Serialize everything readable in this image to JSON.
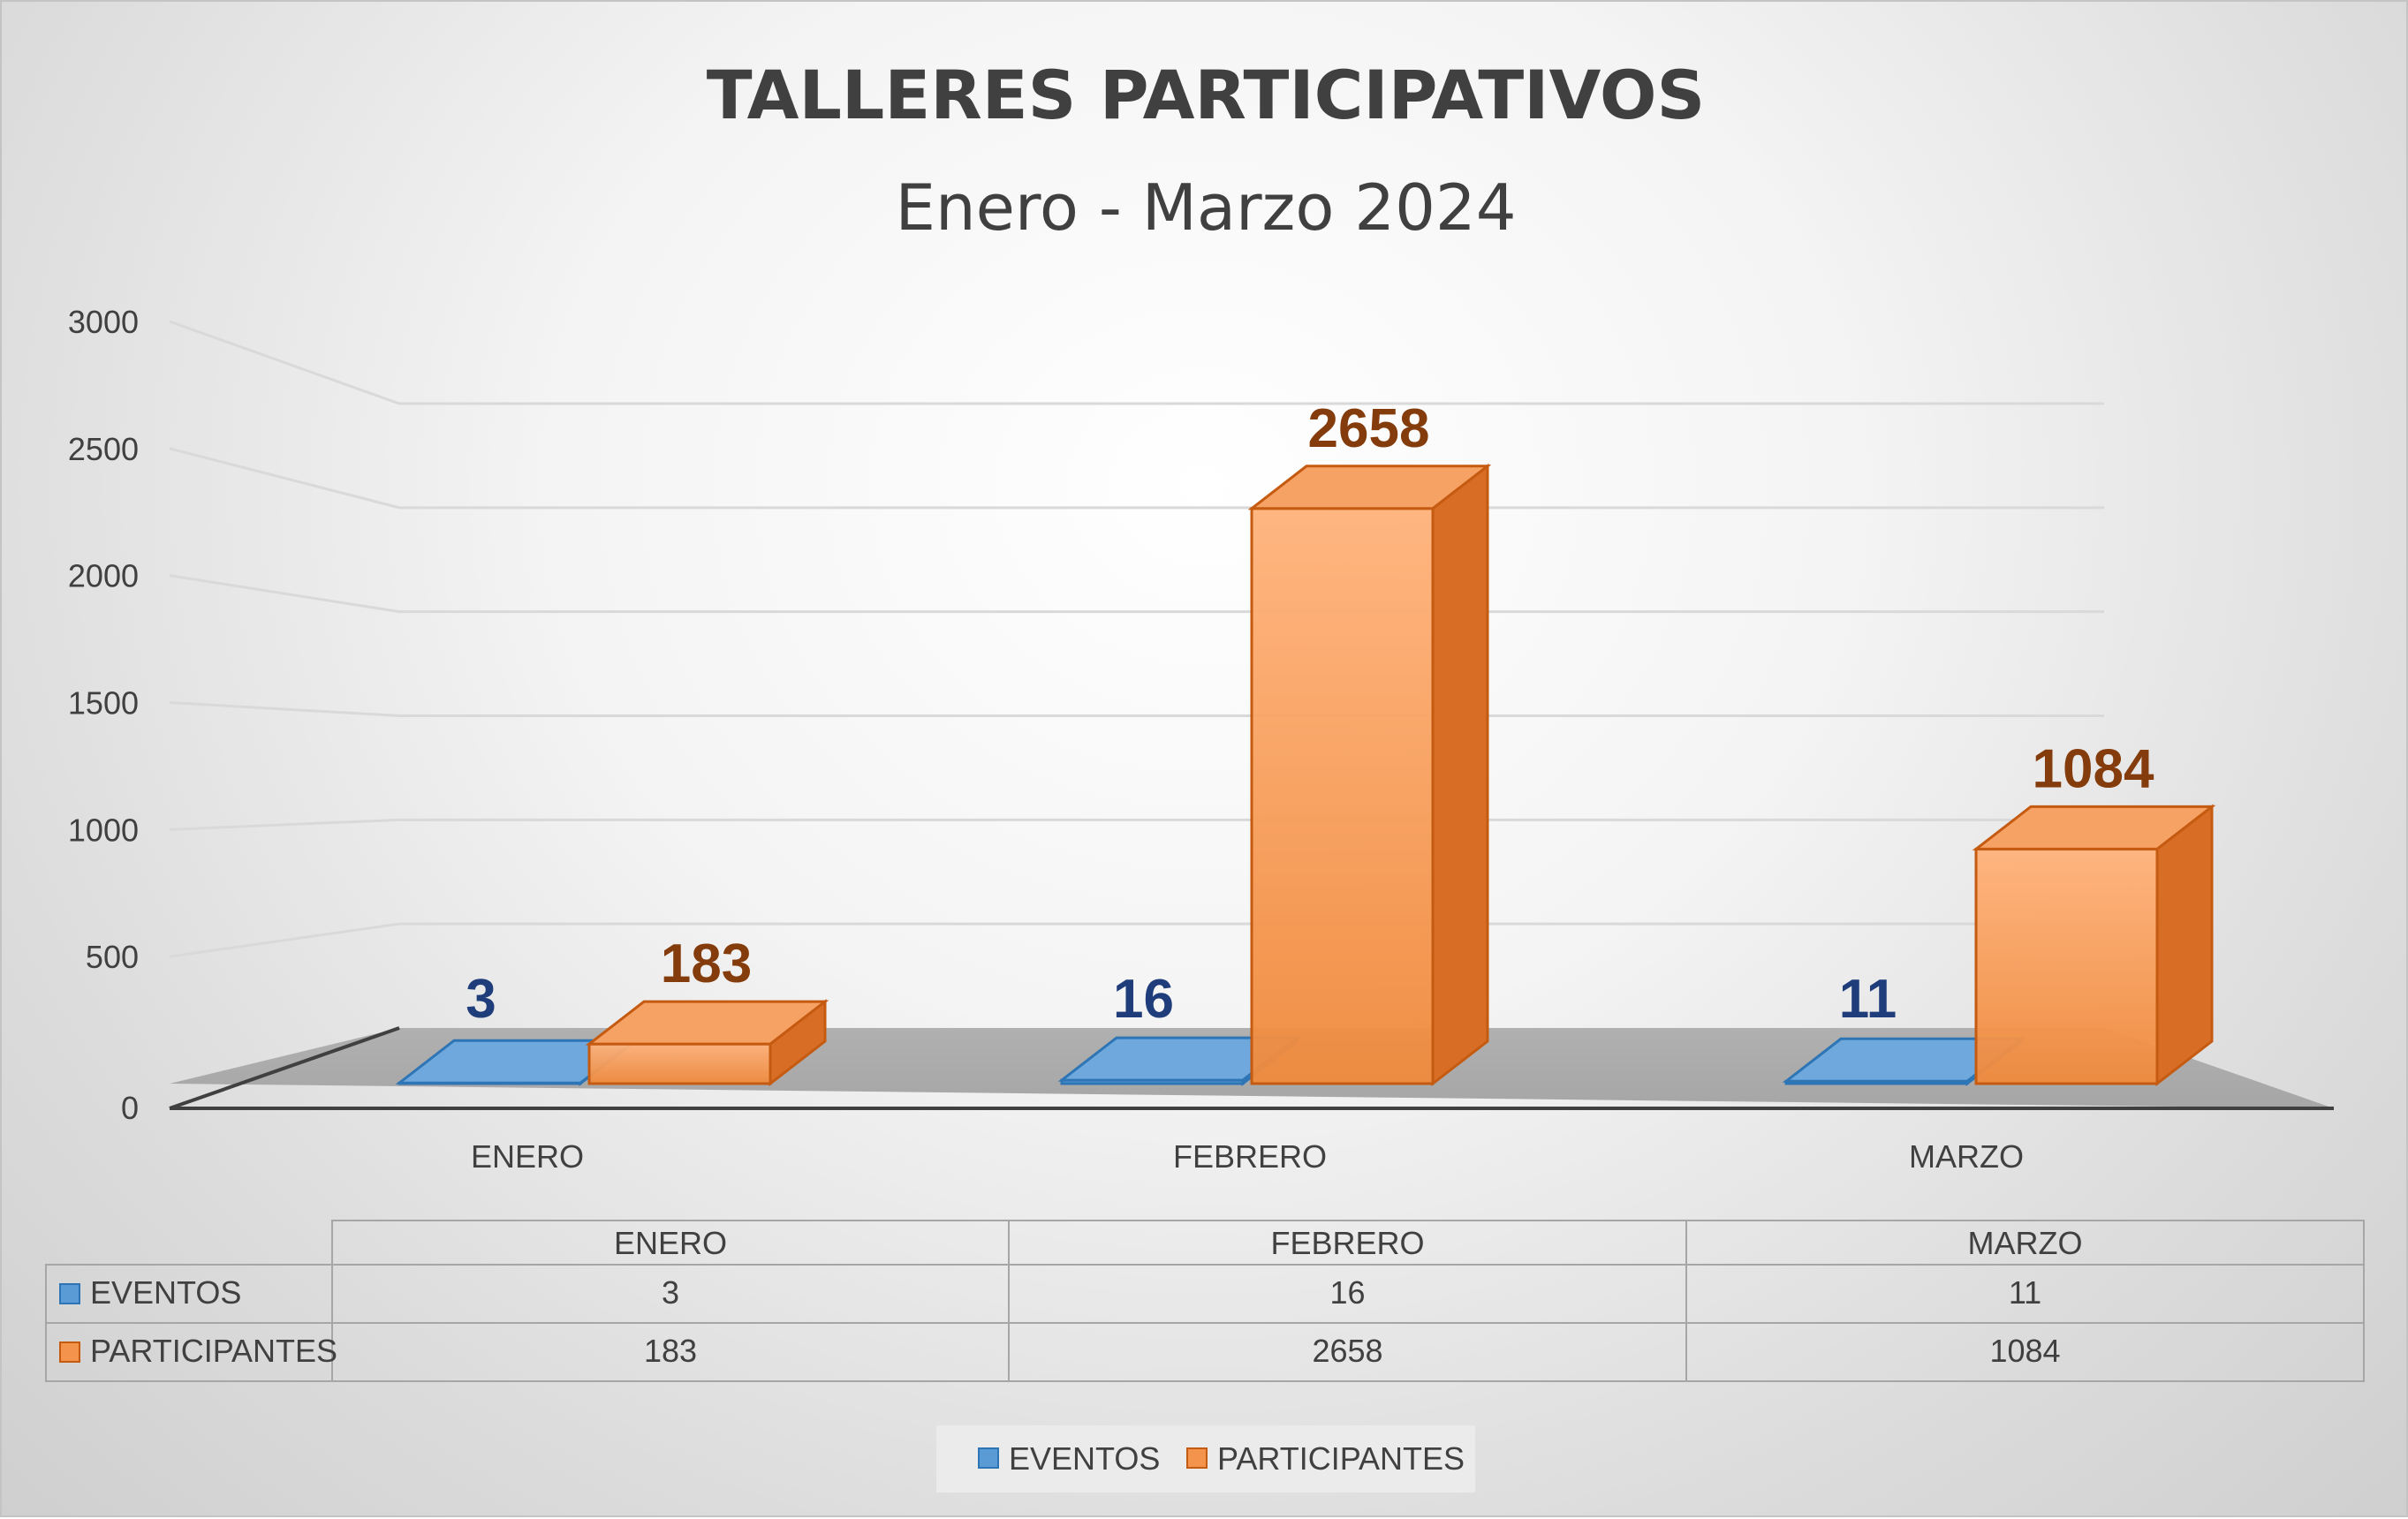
{
  "colors": {
    "eventos": "#5b9bd5",
    "eventos_edge": "#2e75b6",
    "participantes": "#f4944c",
    "participantes_edge": "#c55a11",
    "label_eventos": "#1f3d7a",
    "label_participantes": "#843c0c"
  },
  "chart_data": {
    "type": "bar",
    "title": "TALLERES PARTICIPATIVOS",
    "subtitle": "Enero - Marzo 2024",
    "categories": [
      "ENERO",
      "FEBRERO",
      "MARZO"
    ],
    "series": [
      {
        "name": "EVENTOS",
        "values": [
          3,
          16,
          11
        ]
      },
      {
        "name": "PARTICIPANTES",
        "values": [
          183,
          2658,
          1084
        ]
      }
    ],
    "ylim": [
      0,
      3000
    ],
    "yticks": [
      "0",
      "500",
      "1000",
      "1500",
      "2000",
      "2500",
      "3000"
    ],
    "grid": true,
    "legend_position": "bottom",
    "data_table": true
  }
}
